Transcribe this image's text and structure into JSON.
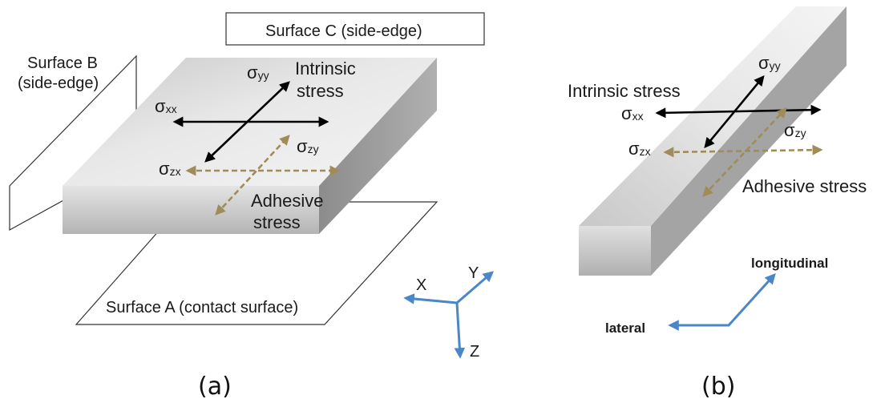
{
  "panel_a": {
    "caption": "(a)",
    "surface_a_label": "Surface A (contact surface)",
    "surface_b_label_line1": "Surface B",
    "surface_b_label_line2": "(side-edge)",
    "surface_c_label": "Surface C (side-edge)",
    "intrinsic_line1": "Intrinsic",
    "intrinsic_line2": "stress",
    "adhesive_line1": "Adhesive",
    "adhesive_line2": "stress",
    "sigma_yy": {
      "symbol": "σ",
      "sub": "yy"
    },
    "sigma_xx": {
      "symbol": "σ",
      "sub": "xx"
    },
    "sigma_zx": {
      "symbol": "σ",
      "sub": "zx"
    },
    "sigma_zy": {
      "symbol": "σ",
      "sub": "zy"
    },
    "axis_x": "X",
    "axis_y": "Y",
    "axis_z": "Z"
  },
  "panel_b": {
    "caption": "(b)",
    "intrinsic_label": "Intrinsic stress",
    "adhesive_label": "Adhesive stress",
    "sigma_yy": {
      "symbol": "σ",
      "sub": "yy"
    },
    "sigma_xx": {
      "symbol": "σ",
      "sub": "xx"
    },
    "sigma_zx": {
      "symbol": "σ",
      "sub": "zx"
    },
    "sigma_zy": {
      "symbol": "σ",
      "sub": "zy"
    },
    "longitudinal_label": "longitudinal",
    "lateral_label": "lateral"
  },
  "colors": {
    "intrinsic_arrow": "#000000",
    "adhesive_arrow": "#a08c58",
    "axis_arrow": "#4a86c8",
    "slab_top": "#dcdcdc",
    "slab_front": "#c4c4c4",
    "slab_side": "#a8a8a8"
  }
}
